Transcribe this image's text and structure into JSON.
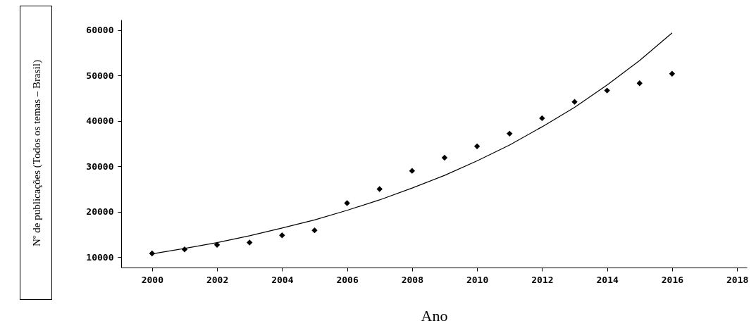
{
  "chart_data": {
    "type": "scatter",
    "xlabel": "Ano",
    "ylabel": "Nº de publicações (Todos os temas – Brasil)",
    "xlim": [
      1999.05,
      2018.3
    ],
    "xticks": [
      2000,
      2002,
      2004,
      2006,
      2008,
      2010,
      2012,
      2014,
      2016,
      2018
    ],
    "ylim": [
      7700,
      62300
    ],
    "yticks": [
      10000,
      20000,
      30000,
      40000,
      50000,
      60000
    ],
    "grid": false,
    "series": [
      {
        "color": "#000000",
        "marker": "diamond",
        "x": [
          2000,
          2001,
          2002,
          2003,
          2004,
          2005,
          2006,
          2007,
          2008,
          2009,
          2010,
          2011,
          2012,
          2013,
          2014,
          2015,
          2016
        ],
        "values": [
          10800,
          11700,
          12700,
          13200,
          14800,
          15900,
          21900,
          25000,
          29000,
          31900,
          34400,
          37200,
          40600,
          44200,
          46700,
          48300,
          50400
        ]
      },
      {
        "type": "line",
        "color": "#000000",
        "line_style": "solid",
        "x": [
          2000,
          2001,
          2002,
          2003,
          2004,
          2005,
          2006,
          2007,
          2008,
          2009,
          2010,
          2011,
          2012,
          2013,
          2014,
          2015,
          2016
        ],
        "values": [
          10700,
          11900,
          13200,
          14700,
          16400,
          18200,
          20300,
          22600,
          25200,
          28000,
          31200,
          34700,
          38700,
          43000,
          47900,
          53300,
          59400
        ]
      }
    ]
  }
}
